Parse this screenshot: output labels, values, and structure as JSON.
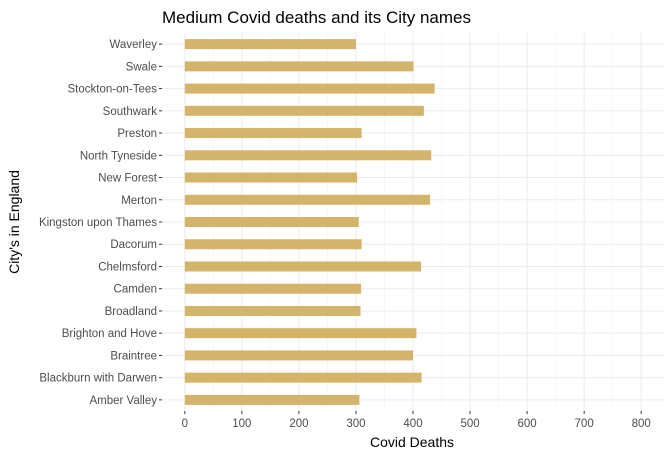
{
  "chart_data": {
    "type": "bar",
    "orientation": "horizontal",
    "title": "Medium Covid deaths and its City names",
    "xlabel": "Covid Deaths",
    "ylabel": "City's in England",
    "xlim": [
      -40,
      840
    ],
    "xticks": [
      0,
      100,
      200,
      300,
      400,
      500,
      600,
      700,
      800
    ],
    "grid": true,
    "bar_color": "#D4B46A",
    "categories": [
      "Waverley",
      "Swale",
      "Stockton-on-Tees",
      "Southwark",
      "Preston",
      "North Tyneside",
      "New Forest",
      "Merton",
      "Kingston upon Thames",
      "Dacorum",
      "Chelmsford",
      "Camden",
      "Broadland",
      "Brighton and Hove",
      "Braintree",
      "Blackburn with Darwen",
      "Amber Valley"
    ],
    "values": [
      300,
      401,
      438,
      419,
      310,
      432,
      302,
      430,
      305,
      310,
      414,
      309,
      308,
      406,
      400,
      415,
      306
    ]
  }
}
